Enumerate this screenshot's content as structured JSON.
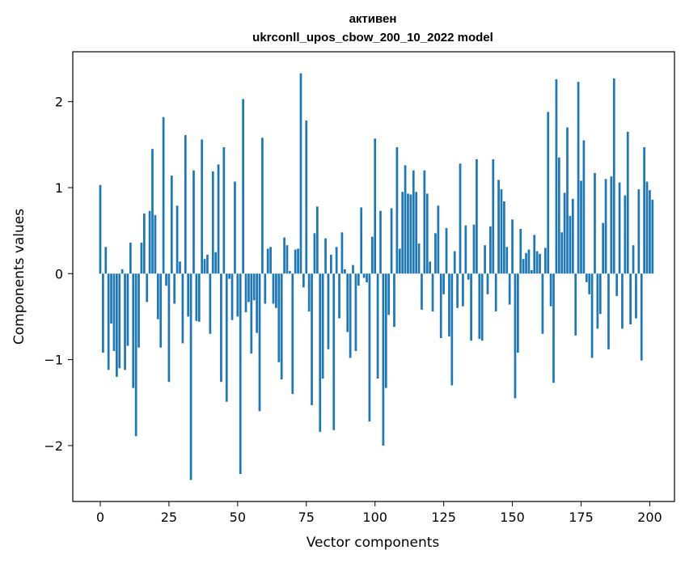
{
  "chart_data": {
    "type": "bar",
    "title": "активен",
    "subtitle": "ukrconll_upos_cbow_200_10_2022 model",
    "xlabel": "Vector components",
    "ylabel": "Components values",
    "xlim": [
      -10,
      209
    ],
    "ylim": [
      -2.65,
      2.58
    ],
    "x_ticks": [
      0,
      25,
      50,
      75,
      100,
      125,
      150,
      175,
      200
    ],
    "y_ticks": [
      -2,
      -1,
      0,
      1,
      2
    ],
    "x_tick_labels": [
      "0",
      "25",
      "50",
      "75",
      "100",
      "125",
      "150",
      "175",
      "200"
    ],
    "y_tick_labels": [
      "−2",
      "−1",
      "0",
      "1",
      "2"
    ],
    "grid": false,
    "legend": "none",
    "bar_color": "#1f77b4",
    "values": [
      1.03,
      -0.92,
      0.31,
      -1.12,
      -0.58,
      -0.9,
      -1.2,
      -1.1,
      0.05,
      -1.12,
      -0.84,
      0.36,
      -1.33,
      -1.89,
      -0.86,
      0.36,
      0.7,
      -0.33,
      0.73,
      1.45,
      0.68,
      -0.53,
      -0.86,
      1.82,
      -0.14,
      -1.26,
      1.14,
      -0.35,
      0.79,
      0.14,
      -0.81,
      1.61,
      -0.5,
      -2.4,
      1.2,
      -0.55,
      -0.56,
      1.56,
      0.17,
      0.22,
      -0.7,
      1.19,
      0.25,
      1.27,
      -1.26,
      1.47,
      -1.49,
      -0.06,
      -0.54,
      1.07,
      -0.5,
      -2.33,
      2.03,
      -0.45,
      -0.33,
      -0.93,
      -0.31,
      -0.69,
      -1.6,
      1.58,
      -0.35,
      0.29,
      0.31,
      -0.35,
      -0.4,
      -1.03,
      -1.23,
      0.42,
      0.33,
      0.03,
      -1.4,
      0.28,
      0.29,
      2.33,
      -0.16,
      1.78,
      -0.44,
      -1.53,
      0.47,
      0.78,
      -1.84,
      -1.22,
      0.41,
      -0.88,
      0.22,
      -1.82,
      0.31,
      -0.52,
      0.48,
      0.05,
      -0.68,
      -0.98,
      0.1,
      -0.9,
      -0.14,
      0.77,
      -0.05,
      -0.1,
      -1.72,
      0.43,
      1.57,
      -1.22,
      0.73,
      -2.0,
      -1.33,
      -0.48,
      0.76,
      -0.62,
      1.47,
      0.29,
      0.95,
      1.26,
      0.93,
      0.92,
      1.2,
      0.95,
      0.35,
      -0.42,
      1.2,
      0.93,
      0.14,
      -0.44,
      0.47,
      0.79,
      -0.75,
      -0.24,
      0.53,
      -0.73,
      -1.3,
      0.26,
      -0.4,
      1.28,
      -0.38,
      0.56,
      -0.07,
      -0.78,
      0.57,
      1.33,
      -0.76,
      -0.78,
      0.33,
      -0.24,
      0.55,
      1.33,
      -0.44,
      1.09,
      0.98,
      0.84,
      0.31,
      -0.36,
      0.63,
      -1.45,
      -0.92,
      0.52,
      0.17,
      0.24,
      0.28,
      0.04,
      0.45,
      0.26,
      0.23,
      -0.7,
      0.3,
      1.88,
      -0.38,
      -1.27,
      2.26,
      1.35,
      0.48,
      0.94,
      1.7,
      0.67,
      0.87,
      -0.72,
      2.23,
      1.08,
      1.55,
      -0.1,
      -0.24,
      -0.98,
      1.17,
      -0.64,
      -0.47,
      0.59,
      1.1,
      -0.88,
      1.13,
      2.27,
      -0.26,
      1.06,
      -0.64,
      0.91,
      1.65,
      -0.59,
      0.33,
      -0.52,
      0.98,
      -1.01,
      1.47,
      1.07,
      0.97,
      0.86
    ]
  }
}
